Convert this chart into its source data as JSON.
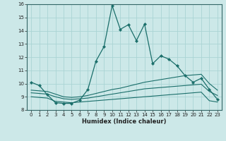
{
  "xlabel": "Humidex (Indice chaleur)",
  "bg_color": "#cce8e8",
  "grid_color": "#aad4d4",
  "line_color": "#1a6e6a",
  "xlim": [
    -0.5,
    23.5
  ],
  "ylim": [
    8,
    16
  ],
  "yticks": [
    8,
    9,
    10,
    11,
    12,
    13,
    14,
    15,
    16
  ],
  "xticks": [
    0,
    1,
    2,
    3,
    4,
    5,
    6,
    7,
    8,
    9,
    10,
    11,
    12,
    13,
    14,
    15,
    16,
    17,
    18,
    19,
    20,
    21,
    22,
    23
  ],
  "series": [
    {
      "x": [
        0,
        1,
        2,
        3,
        4,
        5,
        6,
        7,
        8,
        9,
        10,
        11,
        12,
        13,
        14,
        15,
        16,
        17,
        18,
        19,
        20,
        21,
        22,
        23
      ],
      "y": [
        10.1,
        9.85,
        9.15,
        8.55,
        8.5,
        8.5,
        8.75,
        9.55,
        11.7,
        12.8,
        15.9,
        14.1,
        14.45,
        13.25,
        14.5,
        11.5,
        12.1,
        11.85,
        11.35,
        10.6,
        10.1,
        10.4,
        9.55,
        8.8
      ],
      "has_markers": true
    },
    {
      "x": [
        0,
        1,
        2,
        3,
        4,
        5,
        6,
        7,
        8,
        9,
        10,
        11,
        12,
        13,
        14,
        15,
        16,
        17,
        18,
        19,
        20,
        21,
        22,
        23
      ],
      "y": [
        9.0,
        8.95,
        8.9,
        8.65,
        8.6,
        8.55,
        8.6,
        8.65,
        8.7,
        8.75,
        8.8,
        8.85,
        8.9,
        8.95,
        9.0,
        9.05,
        9.1,
        9.15,
        9.2,
        9.25,
        9.3,
        9.35,
        8.7,
        8.6
      ],
      "has_markers": false
    },
    {
      "x": [
        0,
        1,
        2,
        3,
        4,
        5,
        6,
        7,
        8,
        9,
        10,
        11,
        12,
        13,
        14,
        15,
        16,
        17,
        18,
        19,
        20,
        21,
        22,
        23
      ],
      "y": [
        9.3,
        9.25,
        9.2,
        9.0,
        8.85,
        8.8,
        8.85,
        8.9,
        9.0,
        9.1,
        9.2,
        9.3,
        9.4,
        9.5,
        9.6,
        9.65,
        9.7,
        9.75,
        9.8,
        9.85,
        9.9,
        9.95,
        9.4,
        9.1
      ],
      "has_markers": false
    },
    {
      "x": [
        0,
        1,
        2,
        3,
        4,
        5,
        6,
        7,
        8,
        9,
        10,
        11,
        12,
        13,
        14,
        15,
        16,
        17,
        18,
        19,
        20,
        21,
        22,
        23
      ],
      "y": [
        9.5,
        9.45,
        9.4,
        9.2,
        9.0,
        8.95,
        9.0,
        9.1,
        9.25,
        9.4,
        9.55,
        9.65,
        9.8,
        9.95,
        10.1,
        10.2,
        10.3,
        10.4,
        10.5,
        10.6,
        10.65,
        10.7,
        10.0,
        9.5
      ],
      "has_markers": false
    }
  ]
}
